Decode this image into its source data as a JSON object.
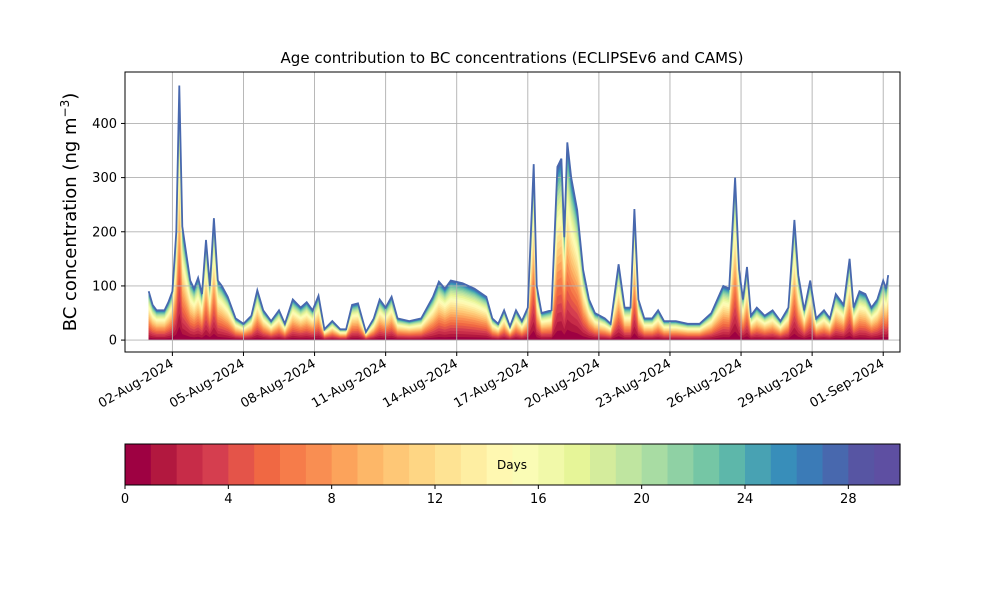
{
  "chart_data": {
    "type": "area",
    "title": "Age contribution to BC concentrations (ECLIPSEv6 and CAMS)",
    "xlabel": "",
    "ylabel": "BC concentration (ng m",
    "ylabel_sup": "−3",
    "ylabel_close": ")",
    "ylim": [
      -22,
      495
    ],
    "yticks": [
      0,
      100,
      200,
      300,
      400
    ],
    "x_start": "2024-07-31",
    "x_end": "2024-09-01",
    "xticks": [
      {
        "date": "2024-08-02",
        "label": "02-Aug-2024"
      },
      {
        "date": "2024-08-05",
        "label": "05-Aug-2024"
      },
      {
        "date": "2024-08-08",
        "label": "08-Aug-2024"
      },
      {
        "date": "2024-08-11",
        "label": "11-Aug-2024"
      },
      {
        "date": "2024-08-14",
        "label": "14-Aug-2024"
      },
      {
        "date": "2024-08-17",
        "label": "17-Aug-2024"
      },
      {
        "date": "2024-08-20",
        "label": "20-Aug-2024"
      },
      {
        "date": "2024-08-23",
        "label": "23-Aug-2024"
      },
      {
        "date": "2024-08-26",
        "label": "26-Aug-2024"
      },
      {
        "date": "2024-08-29",
        "label": "29-Aug-2024"
      },
      {
        "date": "2024-09-01",
        "label": "01-Sep-2024"
      }
    ],
    "grid": true,
    "stack_series": "age classes 0-30 days",
    "total": [
      [
        "2024-08-01T00:00",
        90
      ],
      [
        "2024-08-01T04:00",
        65
      ],
      [
        "2024-08-01T08:00",
        55
      ],
      [
        "2024-08-01T16:00",
        55
      ],
      [
        "2024-08-01T20:00",
        70
      ],
      [
        "2024-08-02T00:00",
        90
      ],
      [
        "2024-08-02T04:00",
        200
      ],
      [
        "2024-08-02T07:00",
        470
      ],
      [
        "2024-08-02T10:00",
        210
      ],
      [
        "2024-08-02T14:00",
        160
      ],
      [
        "2024-08-02T18:00",
        110
      ],
      [
        "2024-08-02T22:00",
        95
      ],
      [
        "2024-08-03T02:00",
        115
      ],
      [
        "2024-08-03T06:00",
        85
      ],
      [
        "2024-08-03T10:00",
        185
      ],
      [
        "2024-08-03T14:00",
        100
      ],
      [
        "2024-08-03T18:00",
        225
      ],
      [
        "2024-08-03T22:00",
        110
      ],
      [
        "2024-08-04T02:00",
        100
      ],
      [
        "2024-08-04T08:00",
        80
      ],
      [
        "2024-08-04T16:00",
        40
      ],
      [
        "2024-08-05T00:00",
        30
      ],
      [
        "2024-08-05T08:00",
        45
      ],
      [
        "2024-08-05T14:00",
        92
      ],
      [
        "2024-08-05T20:00",
        55
      ],
      [
        "2024-08-06T04:00",
        35
      ],
      [
        "2024-08-06T12:00",
        55
      ],
      [
        "2024-08-06T18:00",
        30
      ],
      [
        "2024-08-07T02:00",
        75
      ],
      [
        "2024-08-07T10:00",
        60
      ],
      [
        "2024-08-07T16:00",
        70
      ],
      [
        "2024-08-07T22:00",
        55
      ],
      [
        "2024-08-08T04:00",
        82
      ],
      [
        "2024-08-08T10:00",
        20
      ],
      [
        "2024-08-08T18:00",
        35
      ],
      [
        "2024-08-09T02:00",
        20
      ],
      [
        "2024-08-09T08:00",
        20
      ],
      [
        "2024-08-09T14:00",
        65
      ],
      [
        "2024-08-09T20:00",
        68
      ],
      [
        "2024-08-10T04:00",
        15
      ],
      [
        "2024-08-10T12:00",
        40
      ],
      [
        "2024-08-10T18:00",
        75
      ],
      [
        "2024-08-11T00:00",
        60
      ],
      [
        "2024-08-11T06:00",
        80
      ],
      [
        "2024-08-11T12:00",
        40
      ],
      [
        "2024-08-12T00:00",
        35
      ],
      [
        "2024-08-12T12:00",
        40
      ],
      [
        "2024-08-13T00:00",
        80
      ],
      [
        "2024-08-13T06:00",
        108
      ],
      [
        "2024-08-13T12:00",
        95
      ],
      [
        "2024-08-13T18:00",
        110
      ],
      [
        "2024-08-14T06:00",
        105
      ],
      [
        "2024-08-14T18:00",
        95
      ],
      [
        "2024-08-15T06:00",
        80
      ],
      [
        "2024-08-15T12:00",
        40
      ],
      [
        "2024-08-15T18:00",
        30
      ],
      [
        "2024-08-16T00:00",
        55
      ],
      [
        "2024-08-16T06:00",
        25
      ],
      [
        "2024-08-16T12:00",
        55
      ],
      [
        "2024-08-16T18:00",
        35
      ],
      [
        "2024-08-17T00:00",
        60
      ],
      [
        "2024-08-17T06:00",
        325
      ],
      [
        "2024-08-17T09:00",
        100
      ],
      [
        "2024-08-17T14:00",
        50
      ],
      [
        "2024-08-18T00:00",
        55
      ],
      [
        "2024-08-18T06:00",
        320
      ],
      [
        "2024-08-18T10:00",
        335
      ],
      [
        "2024-08-18T13:00",
        190
      ],
      [
        "2024-08-18T16:00",
        365
      ],
      [
        "2024-08-18T20:00",
        300
      ],
      [
        "2024-08-19T02:00",
        240
      ],
      [
        "2024-08-19T08:00",
        130
      ],
      [
        "2024-08-19T14:00",
        75
      ],
      [
        "2024-08-19T20:00",
        50
      ],
      [
        "2024-08-20T06:00",
        40
      ],
      [
        "2024-08-20T12:00",
        30
      ],
      [
        "2024-08-20T20:00",
        140
      ],
      [
        "2024-08-21T02:00",
        60
      ],
      [
        "2024-08-21T08:00",
        60
      ],
      [
        "2024-08-21T12:00",
        242
      ],
      [
        "2024-08-21T16:00",
        75
      ],
      [
        "2024-08-21T22:00",
        40
      ],
      [
        "2024-08-22T06:00",
        40
      ],
      [
        "2024-08-22T12:00",
        55
      ],
      [
        "2024-08-22T18:00",
        35
      ],
      [
        "2024-08-23T06:00",
        35
      ],
      [
        "2024-08-23T18:00",
        30
      ],
      [
        "2024-08-24T06:00",
        30
      ],
      [
        "2024-08-24T18:00",
        50
      ],
      [
        "2024-08-25T06:00",
        100
      ],
      [
        "2024-08-25T12:00",
        95
      ],
      [
        "2024-08-25T18:00",
        300
      ],
      [
        "2024-08-25T22:00",
        130
      ],
      [
        "2024-08-26T02:00",
        75
      ],
      [
        "2024-08-26T06:00",
        135
      ],
      [
        "2024-08-26T10:00",
        45
      ],
      [
        "2024-08-26T16:00",
        60
      ],
      [
        "2024-08-27T00:00",
        45
      ],
      [
        "2024-08-27T08:00",
        55
      ],
      [
        "2024-08-27T16:00",
        35
      ],
      [
        "2024-08-28T00:00",
        60
      ],
      [
        "2024-08-28T06:00",
        222
      ],
      [
        "2024-08-28T10:00",
        120
      ],
      [
        "2024-08-28T16:00",
        55
      ],
      [
        "2024-08-28T22:00",
        110
      ],
      [
        "2024-08-29T04:00",
        40
      ],
      [
        "2024-08-29T12:00",
        55
      ],
      [
        "2024-08-29T18:00",
        40
      ],
      [
        "2024-08-30T00:00",
        85
      ],
      [
        "2024-08-30T08:00",
        65
      ],
      [
        "2024-08-30T14:00",
        150
      ],
      [
        "2024-08-30T18:00",
        60
      ],
      [
        "2024-08-31T00:00",
        90
      ],
      [
        "2024-08-31T06:00",
        85
      ],
      [
        "2024-08-31T12:00",
        60
      ],
      [
        "2024-08-31T18:00",
        75
      ],
      [
        "2024-09-01T00:00",
        110
      ],
      [
        "2024-09-01T03:00",
        95
      ],
      [
        "2024-09-01T05:00",
        120
      ]
    ],
    "colorbar": {
      "label": "Days",
      "min": 0,
      "max": 30,
      "ticks": [
        0,
        4,
        8,
        12,
        16,
        20,
        24,
        28
      ],
      "colors": [
        "#9e0142",
        "#b2183f",
        "#c72c48",
        "#d53e4f",
        "#e45449",
        "#f06843",
        "#f67c4a",
        "#f98e52",
        "#fca35b",
        "#fdb768",
        "#fec776",
        "#fed684",
        "#fee393",
        "#feeea2",
        "#fff8b1",
        "#fafcb5",
        "#f1f9a9",
        "#e6f598",
        "#d4ec9c",
        "#bfe5a0",
        "#a8dca3",
        "#8fd1a4",
        "#75c6a5",
        "#5db7aa",
        "#48a2b3",
        "#388eba",
        "#3b7bb7",
        "#4868ae",
        "#5755a3",
        "#5e4fa2"
      ]
    }
  }
}
